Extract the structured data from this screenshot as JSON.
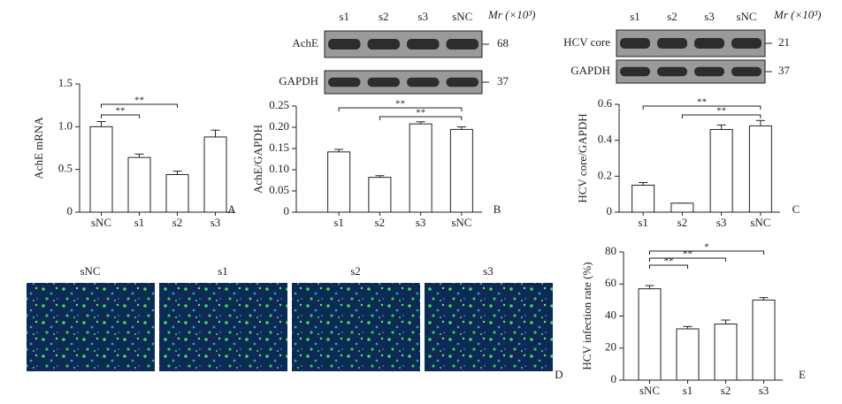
{
  "chart_data": [
    {
      "type": "bar",
      "panel": "A",
      "ylabel": "AchE mRNA",
      "categories": [
        "sNC",
        "s1",
        "s2",
        "s3"
      ],
      "values": [
        1.0,
        0.64,
        0.44,
        0.88
      ],
      "errors": [
        0.06,
        0.04,
        0.04,
        0.08
      ],
      "ylim": [
        0,
        1.5
      ],
      "yticks": [
        0,
        0.5,
        {
          "value": 1,
          "label": "1.0"
        },
        1.5
      ],
      "color": "#ffffff",
      "brackets": [
        {
          "between": [
            "sNC",
            "s1"
          ],
          "text": "**"
        },
        {
          "between": [
            "sNC",
            "s2"
          ],
          "text": "**"
        }
      ]
    },
    {
      "type": "bar",
      "panel": "B",
      "ylabel": "AchE/GAPDH",
      "categories": [
        "s1",
        "s2",
        "s3",
        "sNC"
      ],
      "values": [
        0.142,
        0.082,
        0.208,
        0.195
      ],
      "errors": [
        0.006,
        0.004,
        0.005,
        0.006
      ],
      "ylim": [
        0,
        0.25
      ],
      "yticks": [
        0,
        0.05,
        {
          "value": 0.1,
          "label": "0.10"
        },
        0.15,
        {
          "value": 0.2,
          "label": "0.20"
        },
        0.25
      ],
      "color": "#ffffff",
      "brackets": [
        {
          "between": [
            "s2",
            "sNC"
          ],
          "text": "**"
        },
        {
          "between": [
            "s1",
            "sNC"
          ],
          "text": "**"
        }
      ]
    },
    {
      "type": "bar",
      "panel": "C",
      "ylabel": "HCV core/GAPDH",
      "categories": [
        "s1",
        "s2",
        "s3",
        "sNC"
      ],
      "values": [
        0.15,
        0.05,
        0.46,
        0.48
      ],
      "errors": [
        0.015,
        0,
        0.025,
        0.03
      ],
      "ylim": [
        0,
        0.6
      ],
      "yticks": [
        0,
        0.2,
        0.4,
        0.6
      ],
      "color": "#ffffff",
      "brackets": [
        {
          "between": [
            "s2",
            "sNC"
          ],
          "text": "**"
        },
        {
          "between": [
            "s1",
            "sNC"
          ],
          "text": "**"
        }
      ]
    },
    {
      "type": "bar",
      "panel": "E",
      "ylabel": "HCV infection rate (%)",
      "categories": [
        "sNC",
        "s1",
        "s2",
        "s3"
      ],
      "values": [
        57,
        32,
        35,
        50
      ],
      "errors": [
        2,
        1.5,
        2.5,
        1.5
      ],
      "ylim": [
        0,
        80
      ],
      "yticks": [
        0,
        20,
        40,
        60,
        80
      ],
      "color": "#ffffff",
      "brackets": [
        {
          "between": [
            "sNC",
            "s1"
          ],
          "text": "**"
        },
        {
          "between": [
            "sNC",
            "s2"
          ],
          "text": "**"
        },
        {
          "between": [
            "sNC",
            "s3"
          ],
          "text": "*"
        }
      ]
    }
  ],
  "blots": [
    {
      "lanes": [
        "s1",
        "s2",
        "s3",
        "sNC"
      ],
      "unit": "Mr (×10³)",
      "rows": [
        {
          "label": "AchE",
          "mw": "68"
        },
        {
          "label": "GAPDH",
          "mw": "37"
        }
      ]
    },
    {
      "lanes": [
        "s1",
        "s2",
        "s3",
        "sNC"
      ],
      "unit": "Mr (×10³)",
      "rows": [
        {
          "label": "HCV core",
          "mw": "21"
        },
        {
          "label": "GAPDH",
          "mw": "37"
        }
      ]
    }
  ],
  "images": {
    "panel": "D",
    "labels": [
      "sNC",
      "s1",
      "s2",
      "s3"
    ]
  }
}
